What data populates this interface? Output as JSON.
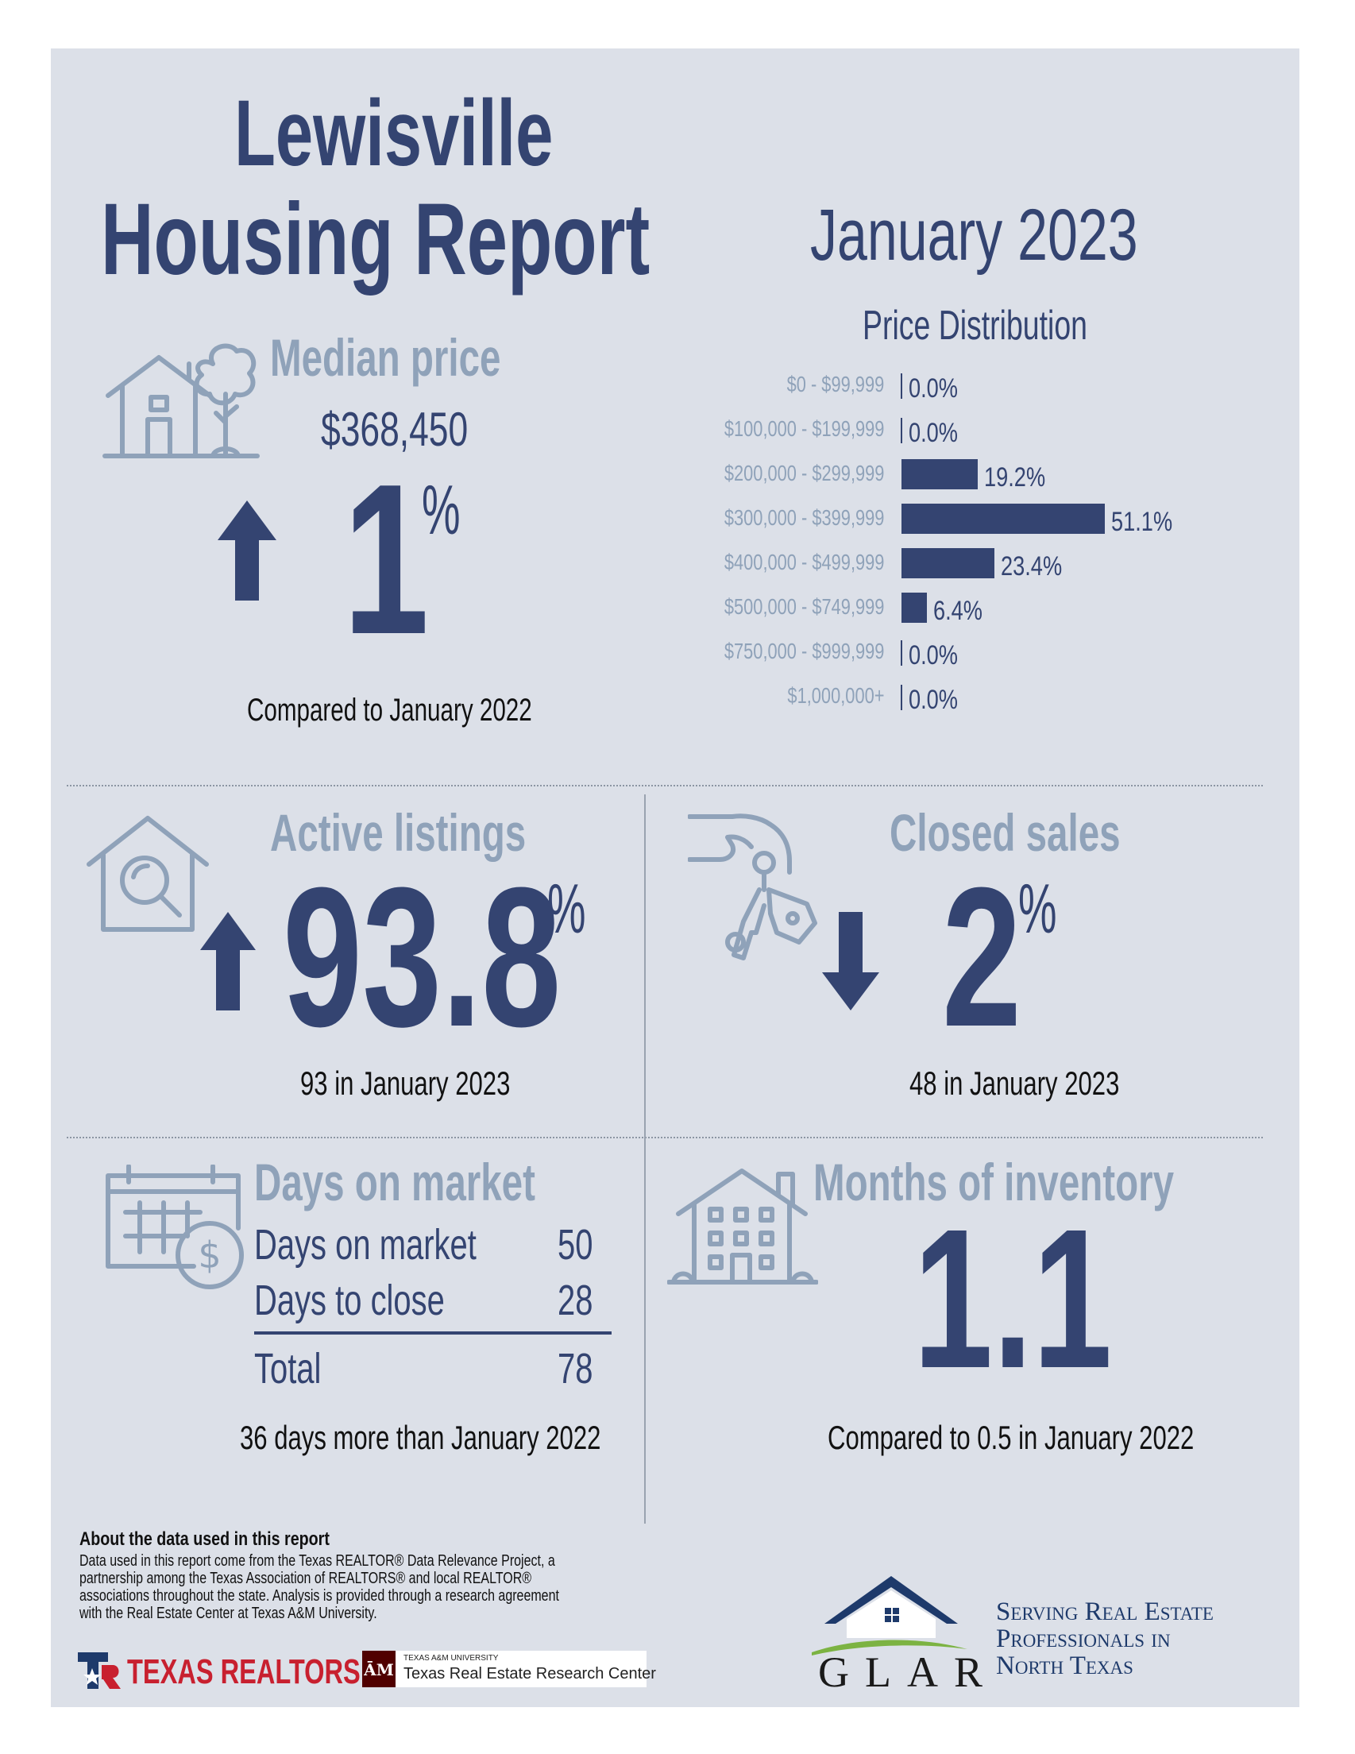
{
  "header": {
    "city": "Lewisville",
    "title": "Housing Report",
    "period": "January 2023"
  },
  "median_price": {
    "heading": "Median price",
    "value": "$368,450",
    "change_number": "1",
    "change_unit": "%",
    "direction": "up",
    "comparison": "Compared to January 2022"
  },
  "price_distribution": {
    "heading": "Price Distribution"
  },
  "chart_data": {
    "type": "bar",
    "title": "Price Distribution",
    "categories": [
      "$0 - $99,999",
      "$100,000 - $199,999",
      "$200,000 - $299,999",
      "$300,000 - $399,999",
      "$400,000 - $499,999",
      "$500,000 - $749,999",
      "$750,000 - $999,999",
      "$1,000,000+"
    ],
    "values": [
      0.0,
      0.0,
      19.2,
      51.1,
      23.4,
      6.4,
      0.0,
      0.0
    ],
    "value_labels": [
      "0.0%",
      "0.0%",
      "19.2%",
      "51.1%",
      "23.4%",
      "6.4%",
      "0.0%",
      "0.0%"
    ],
    "orientation": "horizontal",
    "unit": "%"
  },
  "active_listings": {
    "heading": "Active listings",
    "change_number": "93.8",
    "change_unit": "%",
    "direction": "up",
    "subtext": "93 in January 2023"
  },
  "closed_sales": {
    "heading": "Closed sales",
    "change_number": "2",
    "change_unit": "%",
    "direction": "down",
    "subtext": "48 in January 2023"
  },
  "days_on_market": {
    "heading": "Days on market",
    "rows": [
      {
        "label": "Days on market",
        "value": "50"
      },
      {
        "label": "Days to close",
        "value": "28"
      }
    ],
    "total_label": "Total",
    "total_value": "78",
    "subtext": "36 days more than January 2022"
  },
  "months_inventory": {
    "heading": "Months of inventory",
    "value": "1.1",
    "subtext": "Compared to 0.5 in January 2022"
  },
  "footer": {
    "about_heading": "About the data used in this report",
    "about_lines": [
      "Data used in this report come from the Texas REALTOR® Data Relevance Project, a",
      "partnership among the Texas Association of REALTORS® and local REALTOR®",
      "associations throughout the state. Analysis is provided through a research agreement",
      "with the Real Estate Center at Texas A&M University."
    ],
    "texas_realtors_logo": "TEXAS REALTORS",
    "tamu_small": "TEXAS A&M UNIVERSITY",
    "tamu_name": "Texas Real Estate Research Center",
    "glar_logo": "GLAR",
    "tagline_lines": [
      "Serving Real Estate",
      "Professionals in",
      "North Texas"
    ]
  },
  "colors": {
    "panel": "#dce0e8",
    "navy": "#344471",
    "gray_blue": "#8fa2b9",
    "texas_red": "#c8202f",
    "glar_green": "#7cb342"
  }
}
